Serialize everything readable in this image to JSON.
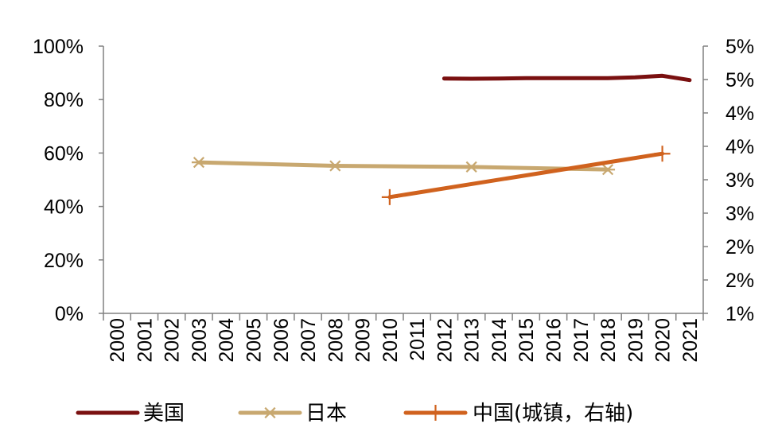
{
  "chart_data": {
    "type": "line",
    "categories": [
      "2000",
      "2001",
      "2002",
      "2003",
      "2004",
      "2005",
      "2006",
      "2007",
      "2008",
      "2009",
      "2010",
      "2011",
      "2012",
      "2013",
      "2014",
      "2015",
      "2016",
      "2017",
      "2018",
      "2019",
      "2020",
      "2021"
    ],
    "y_left": {
      "ticks": [
        "0%",
        "20%",
        "40%",
        "60%",
        "80%",
        "100%"
      ],
      "ylim": [
        0,
        100
      ]
    },
    "y_right": {
      "ticks": [
        "1%",
        "2%",
        "2%",
        "3%",
        "3%",
        "4%",
        "4%",
        "5%",
        "5%"
      ]
    },
    "series": [
      {
        "name": "美国",
        "axis": "left",
        "color": "#7a1010",
        "marker": "none",
        "points": [
          {
            "x": "2012",
            "y": 87.9
          },
          {
            "x": "2013",
            "y": 87.8
          },
          {
            "x": "2014",
            "y": 87.9
          },
          {
            "x": "2015",
            "y": 88.0
          },
          {
            "x": "2016",
            "y": 88.0
          },
          {
            "x": "2017",
            "y": 88.0
          },
          {
            "x": "2018",
            "y": 88.0
          },
          {
            "x": "2019",
            "y": 88.3
          },
          {
            "x": "2020",
            "y": 88.9
          },
          {
            "x": "2021",
            "y": 87.3
          }
        ]
      },
      {
        "name": "日本",
        "axis": "left",
        "color": "#c8a870",
        "marker": "asterisk",
        "points": [
          {
            "x": "2003",
            "y": 56.5
          },
          {
            "x": "2008",
            "y": 55.2
          },
          {
            "x": "2013",
            "y": 54.8
          },
          {
            "x": "2018",
            "y": 53.8
          }
        ]
      },
      {
        "name": "中国(城镇，右轴)",
        "axis": "right",
        "color": "#d0621e",
        "marker": "plus",
        "points": [
          {
            "x": "2010",
            "y": 2.74
          },
          {
            "x": "2020",
            "y": 3.39
          }
        ]
      }
    ]
  }
}
